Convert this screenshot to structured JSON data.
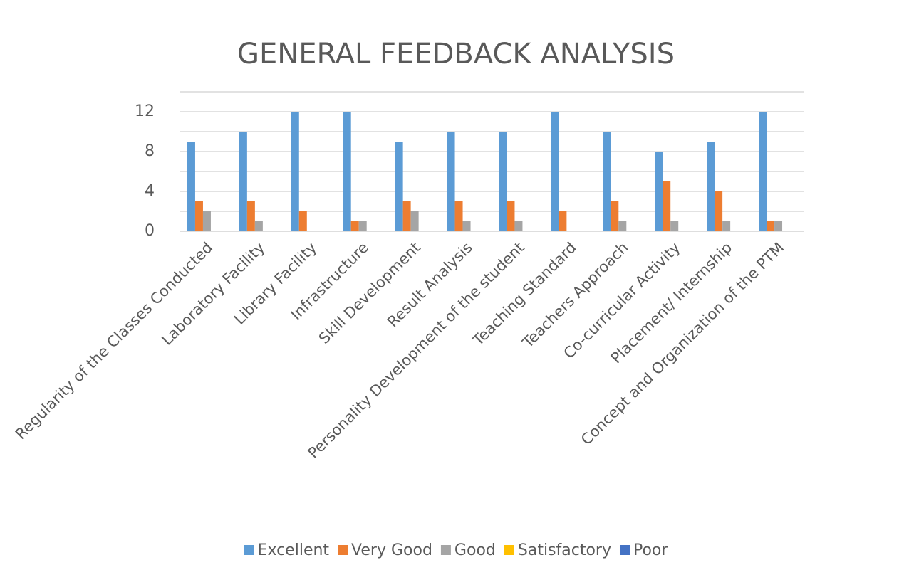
{
  "chart_data": {
    "type": "bar",
    "title": "GENERAL FEEDBACK ANALYSIS",
    "categories": [
      "Regularity of the Classes Conducted",
      "Laboratory Facility",
      "Library Facility",
      "Infrastructure",
      "Skill Development",
      "Result Analysis",
      "Personality Development of the student",
      "Teaching Standard",
      "Teachers Approach",
      "Co-curricular Activity",
      "Placement/ Internship",
      "Concept and Organization of the PTM"
    ],
    "series": [
      {
        "name": "Excellent",
        "color": "#5B9BD5",
        "values": [
          9,
          10,
          12,
          12,
          9,
          10,
          10,
          12,
          10,
          8,
          9,
          12
        ]
      },
      {
        "name": "Very Good",
        "color": "#ED7D31",
        "values": [
          3,
          3,
          2,
          1,
          3,
          3,
          3,
          2,
          3,
          5,
          4,
          1
        ]
      },
      {
        "name": "Good",
        "color": "#A5A5A5",
        "values": [
          2,
          1,
          0,
          1,
          2,
          1,
          1,
          0,
          1,
          1,
          1,
          1
        ]
      },
      {
        "name": "Satisfactory",
        "color": "#FFC000",
        "values": [
          0,
          0,
          0,
          0,
          0,
          0,
          0,
          0,
          0,
          0,
          0,
          0
        ]
      },
      {
        "name": "Poor",
        "color": "#4472C4",
        "values": [
          0,
          0,
          0,
          0,
          0,
          0,
          0,
          0,
          0,
          0,
          0,
          0
        ]
      }
    ],
    "ylim": [
      0,
      14
    ],
    "yticks": [
      0,
      4,
      8,
      12
    ],
    "ygrid": [
      0,
      2,
      4,
      6,
      8,
      10,
      12,
      14
    ],
    "grid": true,
    "legend": "bottom"
  }
}
